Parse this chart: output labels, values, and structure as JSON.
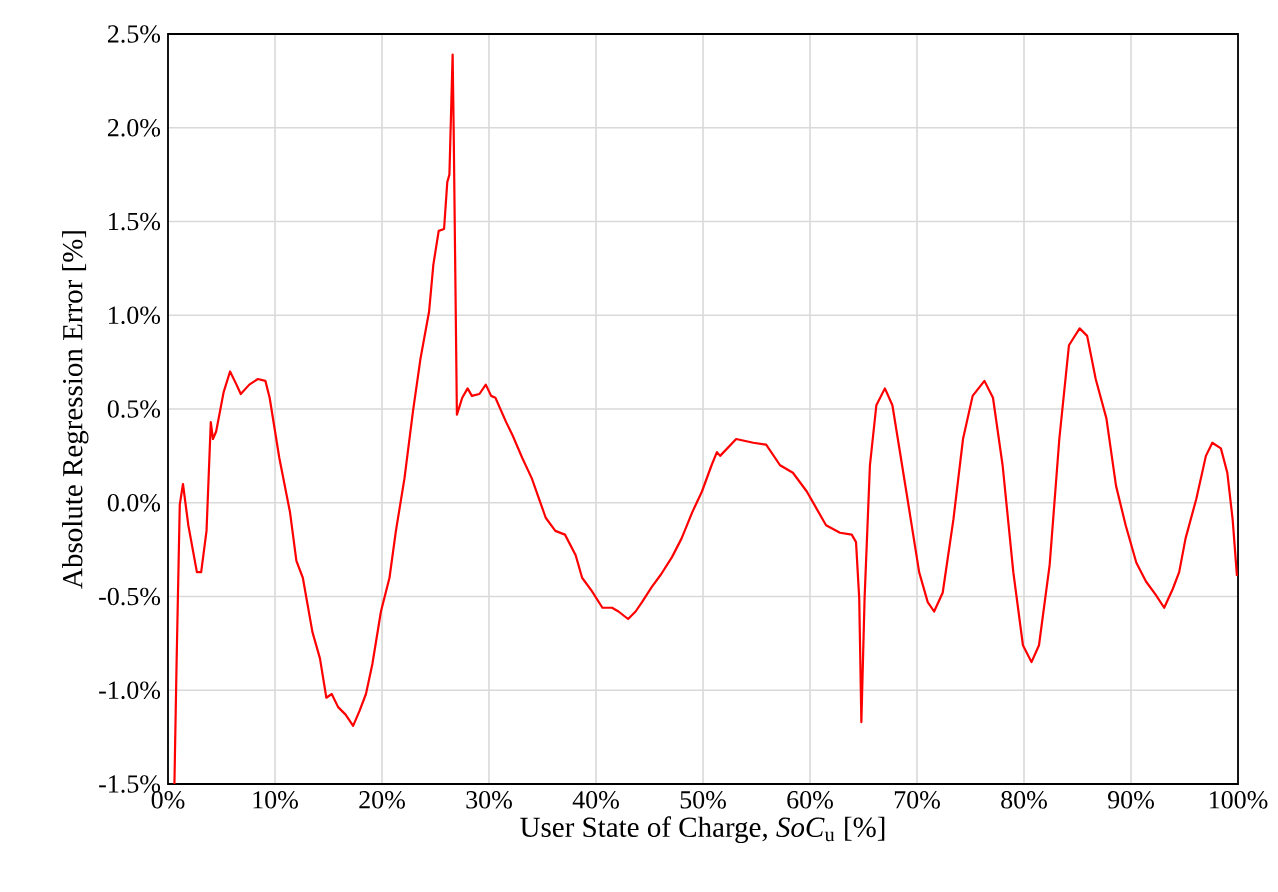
{
  "chart_data": {
    "type": "line",
    "xlabel": "User State of Charge, *SoC*$_{u}$ [%]",
    "ylabel": "Absolute Regression Error [%]",
    "xlim": [
      0,
      100
    ],
    "ylim": [
      -1.5,
      2.5
    ],
    "xticks": [
      {
        "value": 0,
        "label": "0%"
      },
      {
        "value": 10,
        "label": "10%"
      },
      {
        "value": 20,
        "label": "20%"
      },
      {
        "value": 30,
        "label": "30%"
      },
      {
        "value": 40,
        "label": "40%"
      },
      {
        "value": 50,
        "label": "50%"
      },
      {
        "value": 60,
        "label": "60%"
      },
      {
        "value": 70,
        "label": "70%"
      },
      {
        "value": 80,
        "label": "80%"
      },
      {
        "value": 90,
        "label": "90%"
      },
      {
        "value": 100,
        "label": "100%"
      }
    ],
    "yticks": [
      {
        "value": -1.5,
        "label": "-1.5%"
      },
      {
        "value": -1.0,
        "label": "-1.0%"
      },
      {
        "value": -0.5,
        "label": "-0.5%"
      },
      {
        "value": 0,
        "label": "0.0%"
      },
      {
        "value": 0.5,
        "label": "0.5%"
      },
      {
        "value": 1.0,
        "label": "1.0%"
      },
      {
        "value": 1.5,
        "label": "1.5%"
      },
      {
        "value": 2.0,
        "label": "2.0%"
      },
      {
        "value": 2.5,
        "label": "2.5%"
      }
    ],
    "grid": true,
    "marker": "none",
    "line_style": "solid",
    "series": [
      {
        "color": "#ff0000",
        "x": [
          0.6,
          0.8,
          1.1,
          1.4,
          1.9,
          2.7,
          3.1,
          3.6,
          4.0,
          4.2,
          4.5,
          5.2,
          5.8,
          6.4,
          6.8,
          7.6,
          8.4,
          9.1,
          9.5,
          10.4,
          11.4,
          12.0,
          12.6,
          13.5,
          14.2,
          14.8,
          15.3,
          15.9,
          16.6,
          17.3,
          17.9,
          18.5,
          19.1,
          19.9,
          20.7,
          21.3,
          22.1,
          22.9,
          23.6,
          24.4,
          24.8,
          25.3,
          25.8,
          26.1,
          26.3,
          26.6,
          26.7,
          27.0,
          27.5,
          28.0,
          28.4,
          29.1,
          29.7,
          30.2,
          30.6,
          31.6,
          32.2,
          33.1,
          34.0,
          35.3,
          36.2,
          37.1,
          38.1,
          38.7,
          39.6,
          40.6,
          41.5,
          42.1,
          43.0,
          43.7,
          44.3,
          45.2,
          46.1,
          47.1,
          48.0,
          49.0,
          49.9,
          50.8,
          51.3,
          51.6,
          53.1,
          54.7,
          55.9,
          57.2,
          58.4,
          59.7,
          60.6,
          61.5,
          62.8,
          63.9,
          64.3,
          64.6,
          64.8,
          65.1,
          65.6,
          66.2,
          67.0,
          67.7,
          69.0,
          70.2,
          71.0,
          71.6,
          72.4,
          73.4,
          74.3,
          75.2,
          76.3,
          77.1,
          78.0,
          79.0,
          79.9,
          80.7,
          81.4,
          82.4,
          83.3,
          84.2,
          85.2,
          85.9,
          86.7,
          87.7,
          88.6,
          89.5,
          90.5,
          91.4,
          92.3,
          93.1,
          93.9,
          94.5,
          95.1,
          96.1,
          97.0,
          97.6,
          98.4,
          99.0,
          99.5,
          99.9
        ],
        "values": [
          -1.5,
          -0.86,
          -0.01,
          0.1,
          -0.12,
          -0.37,
          -0.37,
          -0.15,
          0.43,
          0.34,
          0.38,
          0.59,
          0.7,
          0.63,
          0.58,
          0.63,
          0.66,
          0.65,
          0.56,
          0.24,
          -0.05,
          -0.31,
          -0.4,
          -0.69,
          -0.83,
          -1.04,
          -1.02,
          -1.09,
          -1.13,
          -1.19,
          -1.11,
          -1.02,
          -0.86,
          -0.58,
          -0.4,
          -0.15,
          0.13,
          0.49,
          0.77,
          1.02,
          1.27,
          1.45,
          1.46,
          1.71,
          1.75,
          2.39,
          1.98,
          0.47,
          0.56,
          0.61,
          0.57,
          0.58,
          0.63,
          0.57,
          0.56,
          0.43,
          0.36,
          0.24,
          0.13,
          -0.08,
          -0.15,
          -0.17,
          -0.28,
          -0.4,
          -0.47,
          -0.56,
          -0.56,
          -0.58,
          -0.62,
          -0.58,
          -0.53,
          -0.45,
          -0.38,
          -0.29,
          -0.19,
          -0.05,
          0.06,
          0.2,
          0.27,
          0.25,
          0.34,
          0.32,
          0.31,
          0.2,
          0.16,
          0.06,
          -0.03,
          -0.12,
          -0.16,
          -0.17,
          -0.21,
          -0.51,
          -1.17,
          -0.51,
          0.2,
          0.52,
          0.61,
          0.52,
          0.06,
          -0.37,
          -0.53,
          -0.58,
          -0.48,
          -0.09,
          0.34,
          0.57,
          0.65,
          0.56,
          0.2,
          -0.37,
          -0.76,
          -0.85,
          -0.76,
          -0.33,
          0.34,
          0.84,
          0.93,
          0.89,
          0.66,
          0.45,
          0.09,
          -0.12,
          -0.32,
          -0.42,
          -0.49,
          -0.56,
          -0.46,
          -0.37,
          -0.19,
          0.02,
          0.25,
          0.32,
          0.29,
          0.16,
          -0.09,
          -0.39
        ]
      }
    ]
  }
}
